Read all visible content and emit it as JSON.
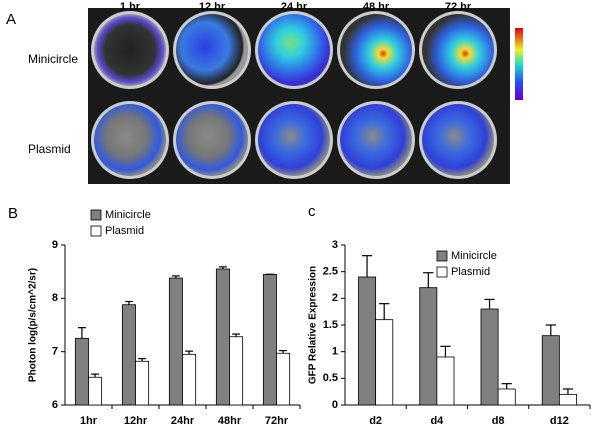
{
  "panel_a": {
    "label": "A",
    "columns": [
      "1 hr",
      "12 hr",
      "24 hr",
      "48 hr",
      "72 hr"
    ],
    "rows": [
      "Minicircle",
      "Plasmid"
    ]
  },
  "chart_data": [
    {
      "type": "bar",
      "panel_label": "B",
      "ylabel": "Photon log(p/s/cm^2/sr)",
      "categories": [
        "1hr",
        "12hr",
        "24hr",
        "48hr",
        "72hr"
      ],
      "series": [
        {
          "name": "Minicircle",
          "color": "#808080",
          "values": [
            7.25,
            7.88,
            8.38,
            8.55,
            8.45
          ],
          "errors": [
            0.2,
            0.06,
            0.04,
            0.04,
            0
          ]
        },
        {
          "name": "Plasmid",
          "color": "#ffffff",
          "values": [
            6.52,
            6.82,
            6.95,
            7.28,
            6.97
          ],
          "errors": [
            0.06,
            0.05,
            0.06,
            0.05,
            0.05
          ]
        }
      ],
      "ylim": [
        6,
        9
      ],
      "yticks": [
        6,
        7,
        8,
        9
      ],
      "legend": "top"
    },
    {
      "type": "bar",
      "panel_label": "c",
      "ylabel": "GFP Relative Expression",
      "categories": [
        "d2",
        "d4",
        "d8",
        "d12"
      ],
      "series": [
        {
          "name": "Minicircle",
          "color": "#808080",
          "values": [
            2.4,
            2.2,
            1.8,
            1.3
          ],
          "errors": [
            0.4,
            0.28,
            0.18,
            0.2
          ]
        },
        {
          "name": "Plasmid",
          "color": "#ffffff",
          "values": [
            1.6,
            0.9,
            0.3,
            0.2
          ],
          "errors": [
            0.3,
            0.2,
            0.1,
            0.1
          ]
        }
      ],
      "ylim": [
        0,
        3
      ],
      "yticks": [
        0,
        0.5,
        1,
        1.5,
        2,
        2.5,
        3
      ],
      "legend": "upper center"
    }
  ]
}
